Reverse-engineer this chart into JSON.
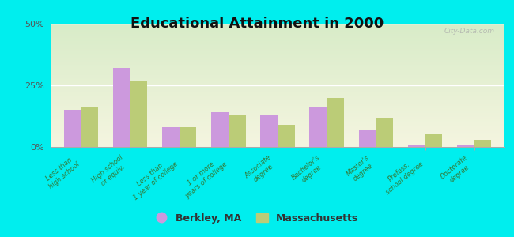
{
  "title": "Educational Attainment in 2000",
  "categories": [
    "Less than\nhigh school",
    "High school\nor equiv.",
    "Less than\n1 year of college",
    "1 or more\nyears of college",
    "Associate\ndegree",
    "Bachelor's\ndegree",
    "Master's\ndegree",
    "Profess.\nschool degree",
    "Doctorate\ndegree"
  ],
  "berkley_values": [
    15.0,
    32.0,
    8.0,
    14.0,
    13.0,
    16.0,
    7.0,
    1.0,
    1.0
  ],
  "mass_values": [
    16.0,
    27.0,
    8.0,
    13.0,
    9.0,
    20.0,
    12.0,
    5.0,
    3.0
  ],
  "ylim": [
    0,
    50
  ],
  "yticks": [
    0,
    25,
    50
  ],
  "yticklabels": [
    "0%",
    "25%",
    "50%"
  ],
  "berkley_color": "#cc99dd",
  "mass_color": "#bbcc77",
  "background_color": "#00eeee",
  "title_color": "#111111",
  "title_fontsize": 13,
  "watermark": "City-Data.com",
  "legend_berkley": "Berkley, MA",
  "legend_mass": "Massachusetts"
}
